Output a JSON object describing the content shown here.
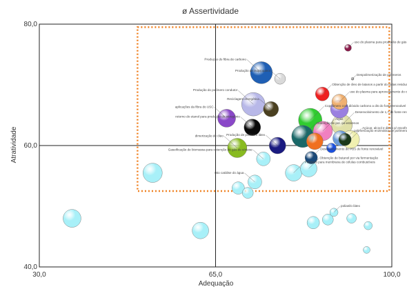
{
  "chart_data": {
    "type": "scatter",
    "title": "ø Assertividade",
    "xlabel": "Adequação",
    "ylabel": "Atratividade",
    "xlim": [
      30,
      100
    ],
    "ylim": [
      40,
      80
    ],
    "x_ticks": [
      "30,0",
      "65,0",
      "100,0"
    ],
    "y_ticks": [
      "40,0",
      "60,0",
      "80,0"
    ],
    "highlight_box": {
      "x": [
        49.5,
        99.5
      ],
      "y": [
        52.5,
        79.5
      ],
      "color": "#f08020"
    },
    "points": [
      {
        "x": 91.3,
        "y": 76.1,
        "size": 5,
        "color": "#8b1a4a",
        "label": "uso do plasma para produção de gás de síntese metanol"
      },
      {
        "x": 74.1,
        "y": 72.0,
        "size": 16,
        "color": "#1f5fb4",
        "label": "Produção do fibra de carbono"
      },
      {
        "x": 77.8,
        "y": 71.0,
        "size": 8,
        "color": "#d9d9d9",
        "label": "Produção de isopropanol"
      },
      {
        "x": 86.2,
        "y": 68.5,
        "size": 10,
        "color": "#ee2020",
        "label": "Obtenção de óleo de latanos a partir do tortas residual"
      },
      {
        "x": 92.2,
        "y": 71.0,
        "size": 2,
        "color": "#999999",
        "label": "Despolimerização de polímeros"
      },
      {
        "x": 72.5,
        "y": 66.8,
        "size": 17,
        "color": "#b8b8e8",
        "label": "Produção do polímero condutor"
      },
      {
        "x": 76.0,
        "y": 66.0,
        "size": 11,
        "color": "#4a4020",
        "label": "Reciclagem energética"
      },
      {
        "x": 67.2,
        "y": 64.5,
        "size": 13,
        "color": "#8a48c8",
        "label": "aplicações da fibra do USC"
      },
      {
        "x": 89.6,
        "y": 67.2,
        "size": 11,
        "color": "#f0b070",
        "label": "uso do plasma para aproveitamento do co2"
      },
      {
        "x": 89.6,
        "y": 66.0,
        "size": 13,
        "color": "#9a80e0",
        "label": ""
      },
      {
        "x": 83.8,
        "y": 64.2,
        "size": 17,
        "color": "#30cc30",
        "label": "Copolímero com dióxido carbono a dis do fonte renovável"
      },
      {
        "x": 86.3,
        "y": 62.4,
        "size": 14,
        "color": "#f080c0",
        "label": "Algas"
      },
      {
        "x": 90.1,
        "y": 63.4,
        "size": 15,
        "color": "#e0e0a8",
        "label": "Desenvolvimento de 1,7 de fonte renovável"
      },
      {
        "x": 72.3,
        "y": 63.0,
        "size": 12,
        "color": "#0a0a0a",
        "label": "retorno do etanol para produção do nitrogênio"
      },
      {
        "x": 82.3,
        "y": 61.5,
        "size": 16,
        "color": "#1a6868",
        "label": "Obtenção de pol. oo-estirenos"
      },
      {
        "x": 91.8,
        "y": 61.0,
        "size": 13,
        "color": "#f0f0b0",
        "label": "Açúcar, alcool e álcoo p/ enxofre por processo fermentativo"
      },
      {
        "x": 89.8,
        "y": 61.2,
        "size": 11,
        "color": "#6a9ad8",
        "label": ""
      },
      {
        "x": 90.7,
        "y": 61.0,
        "size": 9,
        "color": "#1a3818",
        "label": "polimerização enzimática de polímeros"
      },
      {
        "x": 84.7,
        "y": 60.7,
        "size": 12,
        "color": "#f07020",
        "label": ""
      },
      {
        "x": 69.3,
        "y": 59.6,
        "size": 14,
        "color": "#88bb20",
        "label": "dimerização de óleo"
      },
      {
        "x": 77.3,
        "y": 60.0,
        "size": 12,
        "color": "#1a1a80",
        "label": "Produção de polímero látex"
      },
      {
        "x": 88.0,
        "y": 59.6,
        "size": 7,
        "color": "#1a50e0",
        "label": ""
      },
      {
        "x": 84.0,
        "y": 58.0,
        "size": 9,
        "color": "#184878",
        "label": "Desenvolvimento de PBS de fonte renovável"
      },
      {
        "x": 80.5,
        "y": 55.5,
        "size": 12,
        "color": "#a8f0f8",
        "label": "Polímero para membrana de células combustíveis"
      },
      {
        "x": 83.5,
        "y": 56.2,
        "size": 12,
        "color": "#a8f0f8",
        "label": "Obtenção de butanol por via fermentação"
      },
      {
        "x": 74.5,
        "y": 57.8,
        "size": 10,
        "color": "#a8f0f8",
        "label": "Gaseificação de biomassa para obtenção de gás de síntese"
      },
      {
        "x": 72.8,
        "y": 54.0,
        "size": 10,
        "color": "#a8f0f8",
        "label": "Isto catálise do água"
      },
      {
        "x": 71.4,
        "y": 52.2,
        "size": 8,
        "color": "#a8f0f8",
        "label": ""
      },
      {
        "x": 69.5,
        "y": 53.0,
        "size": 9,
        "color": "#a8f0f8",
        "label": ""
      },
      {
        "x": 52.5,
        "y": 55.5,
        "size": 14,
        "color": "#a8f0f8",
        "label": ""
      },
      {
        "x": 36.5,
        "y": 48.0,
        "size": 13,
        "color": "#a8f0f8",
        "label": ""
      },
      {
        "x": 62.0,
        "y": 46.0,
        "size": 12,
        "color": "#a8f0f8",
        "label": ""
      },
      {
        "x": 88.5,
        "y": 49.0,
        "size": 6,
        "color": "#a8f0f8",
        "label": "polianilo látex"
      },
      {
        "x": 87.3,
        "y": 47.8,
        "size": 8,
        "color": "#a8f0f8",
        "label": ""
      },
      {
        "x": 84.4,
        "y": 47.3,
        "size": 9,
        "color": "#a8f0f8",
        "label": ""
      },
      {
        "x": 92.0,
        "y": 48.0,
        "size": 7,
        "color": "#a8f0f8",
        "label": ""
      },
      {
        "x": 95.3,
        "y": 46.8,
        "size": 6,
        "color": "#a8f0f8",
        "label": ""
      },
      {
        "x": 95.0,
        "y": 42.8,
        "size": 5,
        "color": "#a8f0f8",
        "label": ""
      }
    ]
  }
}
